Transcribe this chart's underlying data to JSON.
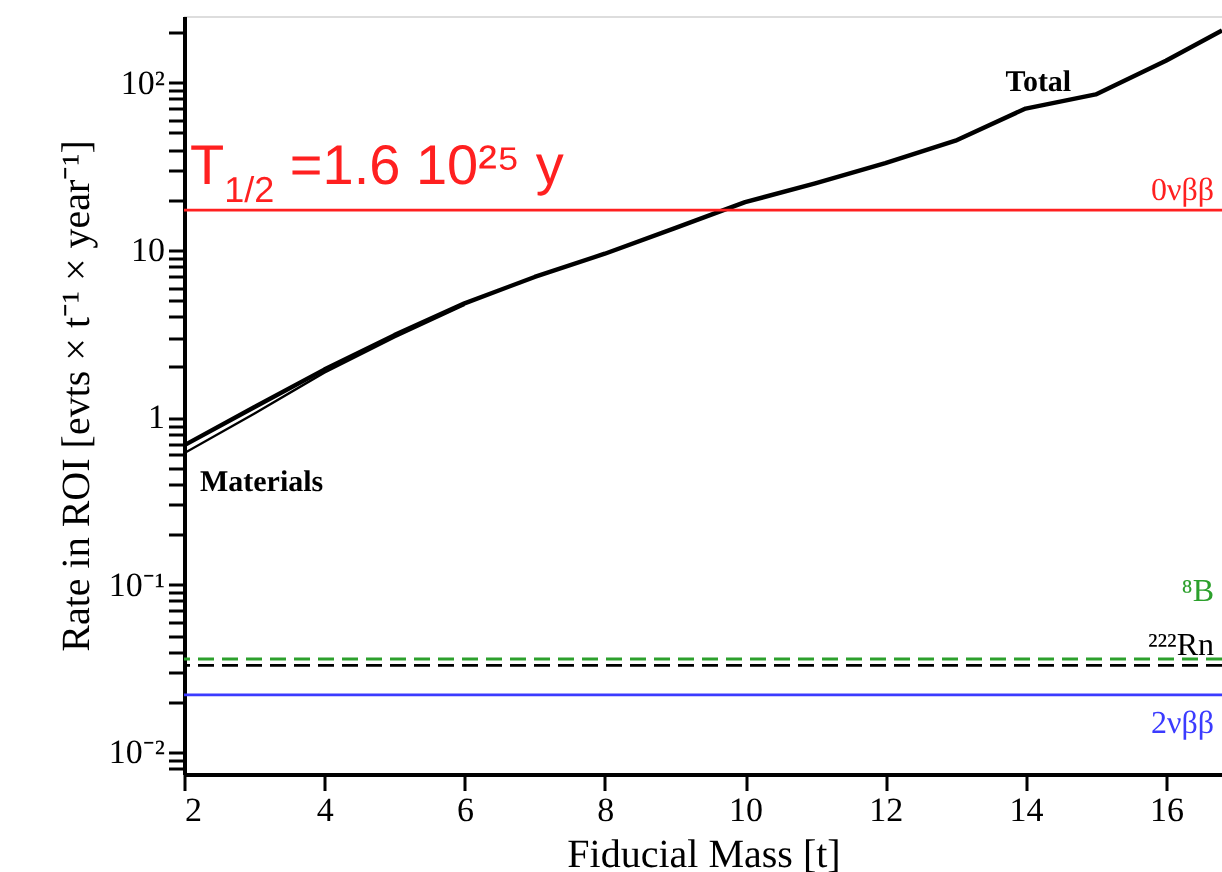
{
  "chart_data": {
    "type": "line",
    "xlabel": "Fiducial Mass [t]",
    "ylabel": "Rate in ROI [evts × t⁻¹ × year⁻¹]",
    "log": "y",
    "xlim": [
      2,
      16.8
    ],
    "ylim": [
      0.0074,
      250
    ],
    "xticks": [
      2,
      4,
      6,
      8,
      10,
      12,
      14,
      16
    ],
    "yticks": [
      {
        "value": 0.008,
        "label": null
      },
      {
        "value": 0.009,
        "label": null
      },
      {
        "value": 0.01,
        "label": "10⁻²"
      },
      {
        "value": 0.02,
        "label": null
      },
      {
        "value": 0.03,
        "label": null
      },
      {
        "value": 0.04,
        "label": null
      },
      {
        "value": 0.05,
        "label": null
      },
      {
        "value": 0.06,
        "label": null
      },
      {
        "value": 0.07,
        "label": null
      },
      {
        "value": 0.08,
        "label": null
      },
      {
        "value": 0.09,
        "label": null
      },
      {
        "value": 0.1,
        "label": "10⁻¹"
      },
      {
        "value": 0.2,
        "label": null
      },
      {
        "value": 0.3,
        "label": null
      },
      {
        "value": 0.4,
        "label": null
      },
      {
        "value": 0.5,
        "label": null
      },
      {
        "value": 0.6,
        "label": null
      },
      {
        "value": 0.7,
        "label": null
      },
      {
        "value": 0.8,
        "label": null
      },
      {
        "value": 0.9,
        "label": null
      },
      1,
      {
        "value": 2,
        "label": null
      },
      {
        "value": 3,
        "label": null
      },
      {
        "value": 4,
        "label": null
      },
      {
        "value": 5,
        "label": null
      },
      {
        "value": 6,
        "label": null
      },
      {
        "value": 7,
        "label": null
      },
      {
        "value": 8,
        "label": null
      },
      {
        "value": 9,
        "label": null
      },
      10,
      {
        "value": 20,
        "label": null
      },
      {
        "value": 30,
        "label": null
      },
      {
        "value": 40,
        "label": null
      },
      {
        "value": 50,
        "label": null
      },
      {
        "value": 60,
        "label": null
      },
      {
        "value": 70,
        "label": null
      },
      {
        "value": 80,
        "label": null
      },
      {
        "value": 90,
        "label": null
      },
      {
        "value": 100,
        "label": "10²"
      },
      {
        "value": 200,
        "label": null
      }
    ],
    "grid": false,
    "series": [
      {
        "name": "Total",
        "color": "#000000",
        "x": [
          2,
          3,
          4,
          5,
          6,
          7,
          8,
          9,
          10,
          11,
          12,
          13,
          14,
          15,
          16,
          16.8
        ],
        "values": [
          0.68,
          1.15,
          1.93,
          3.1,
          4.8,
          6.9,
          9.5,
          13.5,
          19.3,
          25,
          33,
          45,
          70,
          85,
          135,
          205
        ]
      },
      {
        "name": "Materials",
        "color": "#000000",
        "x": [
          2,
          3,
          4,
          5,
          6
        ],
        "values": [
          0.61,
          1.05,
          1.85,
          3.0,
          4.7
        ]
      }
    ],
    "ref_lines": [
      {
        "axis": "y",
        "value": 17.3,
        "label": "0νββ",
        "color": "#ff2020",
        "line_style": "solid"
      },
      {
        "axis": "y",
        "value": 0.033,
        "label": "²²²Rn",
        "color": "#000000",
        "line_style": "dashed"
      },
      {
        "axis": "y",
        "value": 0.036,
        "label": "⁸B",
        "color": "#2ca02c",
        "line_style": "dashed"
      },
      {
        "axis": "y",
        "value": 0.022,
        "label": "2νββ",
        "color": "#3b3bff",
        "line_style": "solid"
      }
    ],
    "annotations": [
      "T$_{1/2}$ =1.6 10²⁵ y"
    ]
  }
}
